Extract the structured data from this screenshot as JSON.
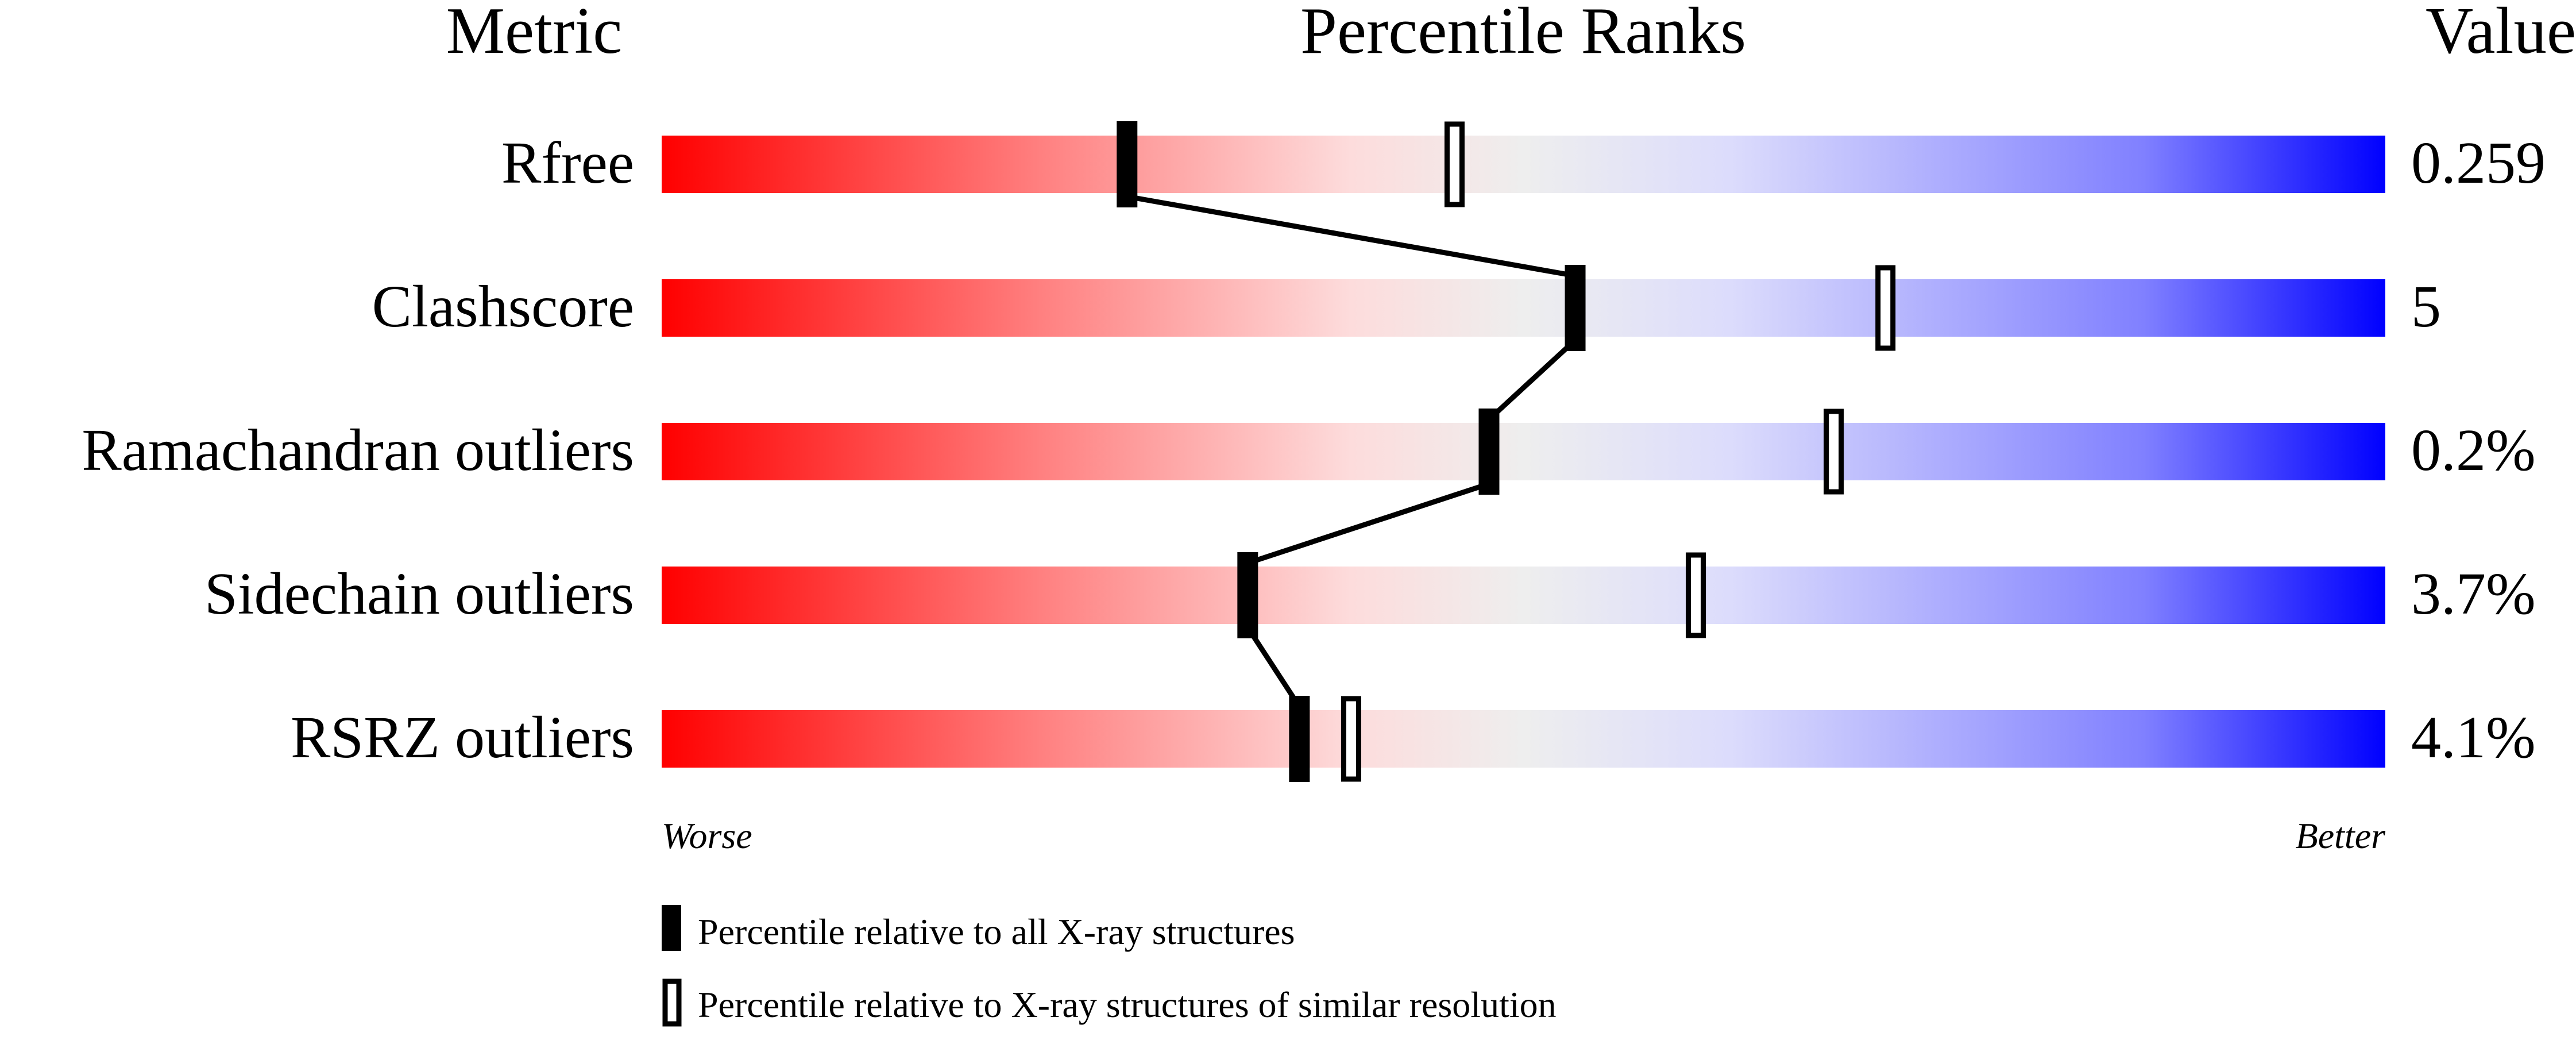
{
  "chart_data": {
    "type": "percentile-slider",
    "headers": {
      "metric": "Metric",
      "ranks": "Percentile Ranks",
      "value": "Value"
    },
    "axis": {
      "left_label": "Worse",
      "right_label": "Better",
      "range": [
        0,
        100
      ]
    },
    "gradient_colors": [
      "#ff0000",
      "#ff8080",
      "#fddcdc",
      "#eeeeee",
      "#dcdcfc",
      "#8080ff",
      "#0000ff"
    ],
    "rows": [
      {
        "metric": "Rfree",
        "value": "0.259",
        "percentile_all": 27,
        "percentile_similar": 46
      },
      {
        "metric": "Clashscore",
        "value": "5",
        "percentile_all": 53,
        "percentile_similar": 71
      },
      {
        "metric": "Ramachandran outliers",
        "value": "0.2%",
        "percentile_all": 48,
        "percentile_similar": 68
      },
      {
        "metric": "Sidechain outliers",
        "value": "3.7%",
        "percentile_all": 34,
        "percentile_similar": 60
      },
      {
        "metric": "RSRZ outliers",
        "value": "4.1%",
        "percentile_all": 37,
        "percentile_similar": 40
      }
    ],
    "legend": [
      {
        "marker": "filled",
        "label": "Percentile relative to all X-ray structures"
      },
      {
        "marker": "open",
        "label": "Percentile relative to X-ray structures of similar resolution"
      }
    ]
  }
}
